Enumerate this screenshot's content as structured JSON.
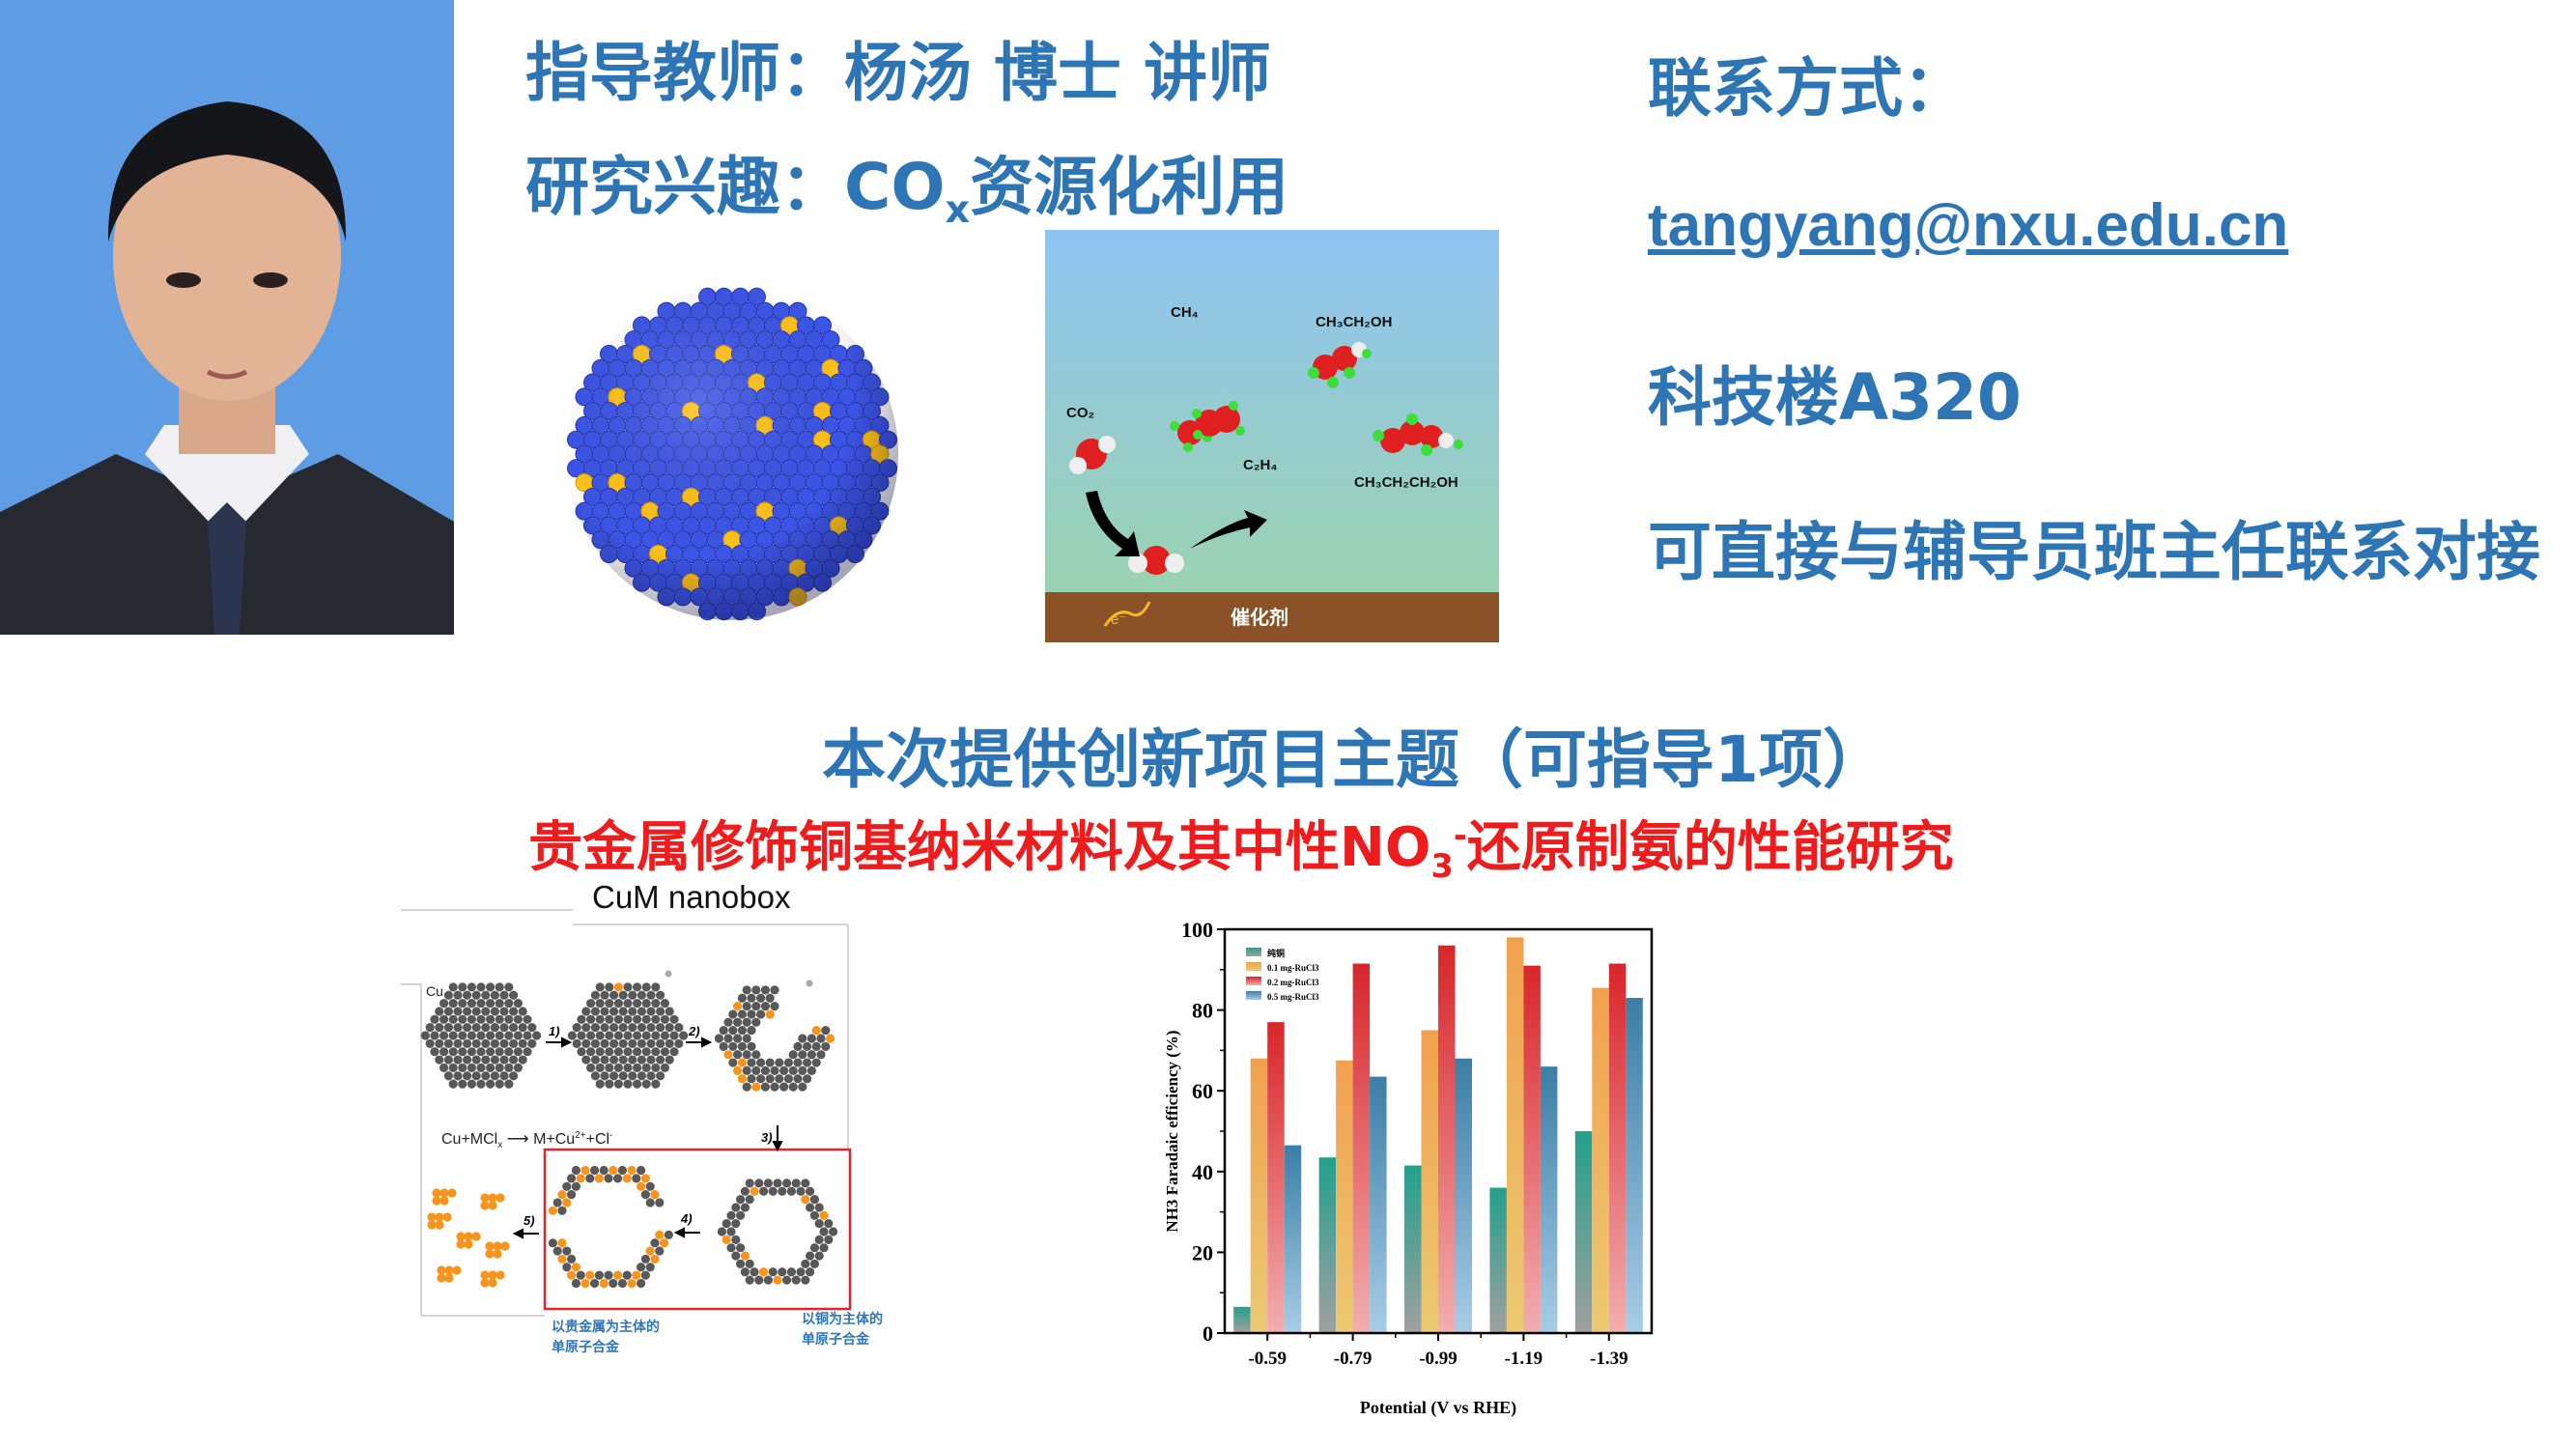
{
  "header": {
    "advisor_label": "指导教师：杨汤 博士 讲师",
    "research_prefix": "研究兴趣：",
    "research_co": "CO",
    "research_sub": "x",
    "research_suffix": "资源化利用"
  },
  "contact": {
    "title": "联系方式：",
    "email": "tangyang@nxu.edu.cn",
    "office": "科技楼A320",
    "note": "可直接与辅导员班主任联系对接"
  },
  "project": {
    "title": "本次提供创新项目主题（可指导1项）",
    "subtitle_prefix": "贵金属修饰铜基纳米材料及其中性NO",
    "subtitle_sub": "3",
    "subtitle_sup": "-",
    "subtitle_suffix": "还原制氨的性能研究"
  },
  "co2_figure": {
    "labels": {
      "co2": "CO₂",
      "ch4": "CH₄",
      "c2h4": "C₂H₄",
      "ethanol": "CH₃CH₂OH",
      "propanol": "CH₃CH₂CH₂OH",
      "electron": "e⁻",
      "catalyst": "催化剂"
    },
    "colors": {
      "sky_top": "#8fc4f2",
      "sky_bottom": "#9bd3b0",
      "ground": "#8a5226",
      "atom_red": "#e02020",
      "atom_green": "#3adf3a"
    }
  },
  "nanobox_figure": {
    "title": "CuM nanobox",
    "cu_label": "Cu",
    "steps": [
      "1)",
      "2)",
      "3)",
      "4)",
      "5)"
    ],
    "equation": "Cu+MCl",
    "equation_sub": "x",
    "equation_product": "M+Cu",
    "equation_sup": "2+",
    "equation_tail": "+Cl",
    "equation_tail_sup": "-",
    "label_noble_line1": "以贵金属为主体的",
    "label_noble_line2": "单原子合金",
    "label_cu_line1": "以铜为主体的",
    "label_cu_line2": "单原子合金",
    "colors": {
      "cu": "#585858",
      "noble": "#f7941d",
      "frame": "#e0262b",
      "label": "#2e75b6"
    }
  },
  "chart_data": {
    "type": "bar",
    "title": "",
    "xlabel": "Potential (V vs RHE)",
    "ylabel": "NH3 Faradaic efficiency (%)",
    "ylim": [
      0,
      100
    ],
    "yticks": [
      0,
      20,
      40,
      60,
      80,
      100
    ],
    "categories": [
      "-0.59",
      "-0.79",
      "-0.99",
      "-1.19",
      "-1.39"
    ],
    "legend_position": "top-left",
    "grid": false,
    "series": [
      {
        "name": "纯铜",
        "values": [
          6.5,
          43.5,
          41.5,
          36,
          50
        ],
        "color_top": "#23a08c",
        "color_bottom": "#a0a0a0"
      },
      {
        "name": "0.1 mg-RuCl3",
        "values": [
          68,
          67.5,
          75,
          98,
          85.5
        ],
        "color_top": "#f2a04e",
        "color_bottom": "#ebca72"
      },
      {
        "name": "0.2 mg-RuCl3",
        "values": [
          77,
          91.5,
          96,
          91,
          91.5
        ],
        "color_top": "#d8262a",
        "color_bottom": "#f2aeb0"
      },
      {
        "name": "0.5 mg-RuCl3",
        "values": [
          46.5,
          63.5,
          68,
          66,
          83
        ],
        "color_top": "#3b7ea6",
        "color_bottom": "#a8cde6"
      }
    ]
  }
}
